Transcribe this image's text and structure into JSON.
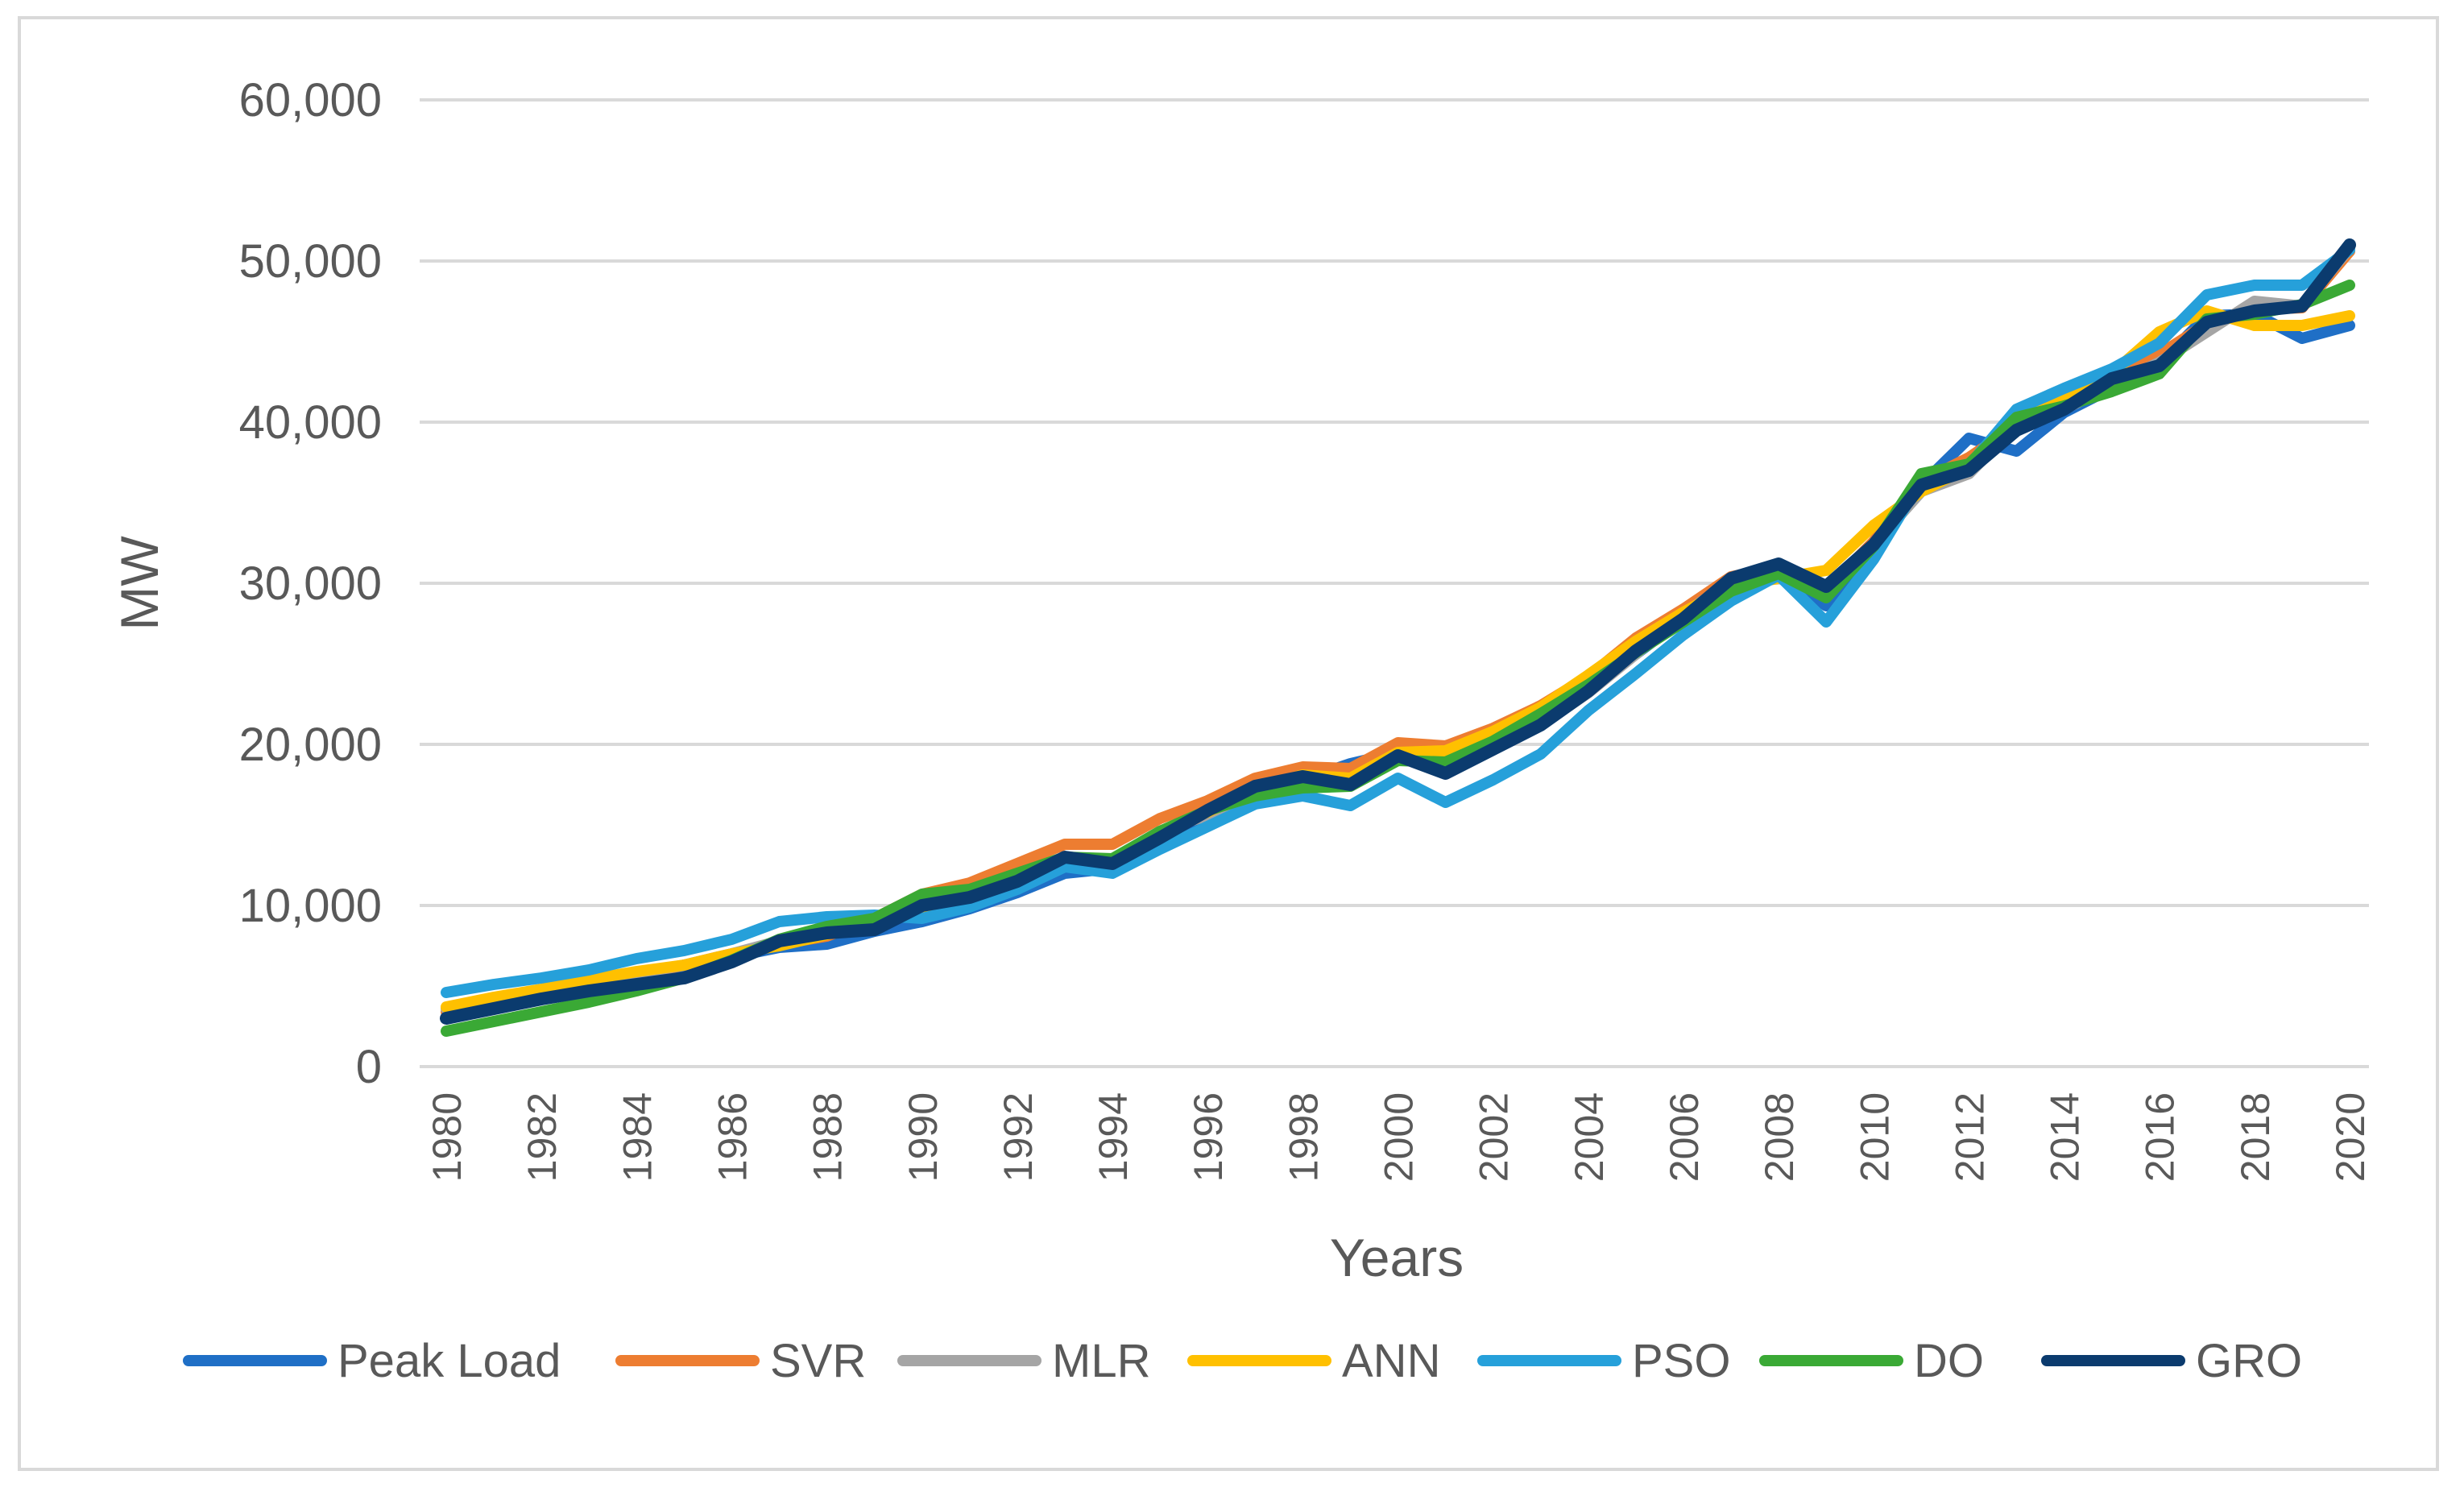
{
  "chart_data": {
    "type": "line",
    "title": "",
    "xlabel": "Years",
    "ylabel": "MW",
    "ylim": [
      0,
      60000
    ],
    "yticks": [
      0,
      10000,
      20000,
      30000,
      40000,
      50000,
      60000
    ],
    "ytick_labels": [
      "0",
      "10,000",
      "20,000",
      "30,000",
      "40,000",
      "50,000",
      "60,000"
    ],
    "x": [
      1980,
      1981,
      1982,
      1983,
      1984,
      1985,
      1986,
      1987,
      1988,
      1989,
      1990,
      1991,
      1992,
      1993,
      1994,
      1995,
      1996,
      1997,
      1998,
      1999,
      2000,
      2001,
      2002,
      2003,
      2004,
      2005,
      2006,
      2007,
      2008,
      2009,
      2010,
      2011,
      2012,
      2013,
      2014,
      2015,
      2016,
      2017,
      2018,
      2019,
      2020
    ],
    "xtick_labels": [
      "1980",
      "1982",
      "1984",
      "1986",
      "1988",
      "1990",
      "1992",
      "1994",
      "1996",
      "1998",
      "2000",
      "2002",
      "2004",
      "2006",
      "2008",
      "2010",
      "2012",
      "2014",
      "2016",
      "2018",
      "2020"
    ],
    "grid": "horizontal",
    "legend_position": "bottom",
    "series": [
      {
        "name": "Peak Load",
        "color": "#1f6fc6",
        "values": [
          3000,
          3800,
          4400,
          5000,
          5500,
          6100,
          6800,
          7400,
          7600,
          8400,
          9000,
          9800,
          10800,
          12000,
          12300,
          13800,
          15400,
          17000,
          17800,
          18800,
          19500,
          19300,
          20500,
          21800,
          23800,
          25600,
          27800,
          29600,
          30600,
          28600,
          32600,
          36100,
          39000,
          38200,
          40600,
          42100,
          43600,
          46600,
          46700,
          45200,
          46000
        ]
      },
      {
        "name": "SVR",
        "color": "#ed7d31",
        "values": [
          3400,
          4000,
          4600,
          5100,
          5700,
          6300,
          7000,
          7600,
          8100,
          9200,
          10700,
          11400,
          12600,
          13800,
          13800,
          15400,
          16500,
          17900,
          18600,
          18500,
          20100,
          19900,
          21000,
          22400,
          24200,
          26600,
          28400,
          30400,
          31000,
          29600,
          32600,
          36300,
          37800,
          39800,
          41200,
          42500,
          44200,
          46100,
          47000,
          47100,
          50600
        ]
      },
      {
        "name": "MLR",
        "color": "#a5a5a5",
        "values": [
          3600,
          4200,
          4700,
          5200,
          5800,
          6300,
          7000,
          7800,
          8300,
          8800,
          10400,
          10900,
          11800,
          12800,
          12700,
          14600,
          15600,
          17100,
          17800,
          17400,
          19200,
          18800,
          19900,
          21200,
          23200,
          25600,
          28100,
          30100,
          30600,
          29600,
          32400,
          35700,
          36800,
          39800,
          40800,
          42300,
          43700,
          45600,
          47500,
          47200,
          50800
        ]
      },
      {
        "name": "ANN",
        "color": "#ffc000",
        "values": [
          3700,
          4300,
          4800,
          5400,
          5900,
          6300,
          7000,
          7500,
          8200,
          8900,
          9600,
          10400,
          11300,
          12400,
          12800,
          14600,
          15800,
          17200,
          18100,
          17900,
          19500,
          19600,
          20800,
          22300,
          24300,
          26400,
          28200,
          29800,
          30300,
          30800,
          33600,
          35700,
          37200,
          40200,
          41600,
          43000,
          45600,
          46900,
          46000,
          46000,
          46600
        ]
      },
      {
        "name": "PSO",
        "color": "#26a0da",
        "values": [
          4600,
          5100,
          5500,
          6000,
          6700,
          7200,
          7900,
          9000,
          9300,
          9400,
          9200,
          9900,
          11000,
          12400,
          12000,
          13500,
          14900,
          16300,
          16800,
          16200,
          17900,
          16400,
          17800,
          19400,
          22100,
          24400,
          26800,
          28900,
          30500,
          27600,
          31500,
          36400,
          37300,
          40800,
          42100,
          43300,
          44900,
          47900,
          48500,
          48500,
          50700
        ]
      },
      {
        "name": "DO",
        "color": "#3aa935",
        "values": [
          2200,
          2800,
          3400,
          4000,
          4700,
          5500,
          6600,
          7900,
          8700,
          9200,
          10700,
          11000,
          12000,
          13000,
          12900,
          14600,
          15900,
          16800,
          17300,
          17400,
          19000,
          18900,
          20200,
          21900,
          23700,
          25700,
          27600,
          29500,
          30600,
          29100,
          32300,
          36800,
          37400,
          40300,
          41000,
          41900,
          43000,
          46400,
          46700,
          47300,
          48500
        ]
      },
      {
        "name": "GRO",
        "color": "#0b3b6e",
        "values": [
          3000,
          3600,
          4200,
          4700,
          5100,
          5500,
          6500,
          7800,
          8300,
          8500,
          10000,
          10500,
          11500,
          13000,
          12600,
          14200,
          15900,
          17400,
          18000,
          17500,
          19300,
          18200,
          19700,
          21200,
          23300,
          25800,
          27800,
          30300,
          31200,
          29800,
          32400,
          36100,
          37000,
          39500,
          40800,
          42700,
          43500,
          46200,
          46900,
          47200,
          51000
        ]
      }
    ]
  }
}
